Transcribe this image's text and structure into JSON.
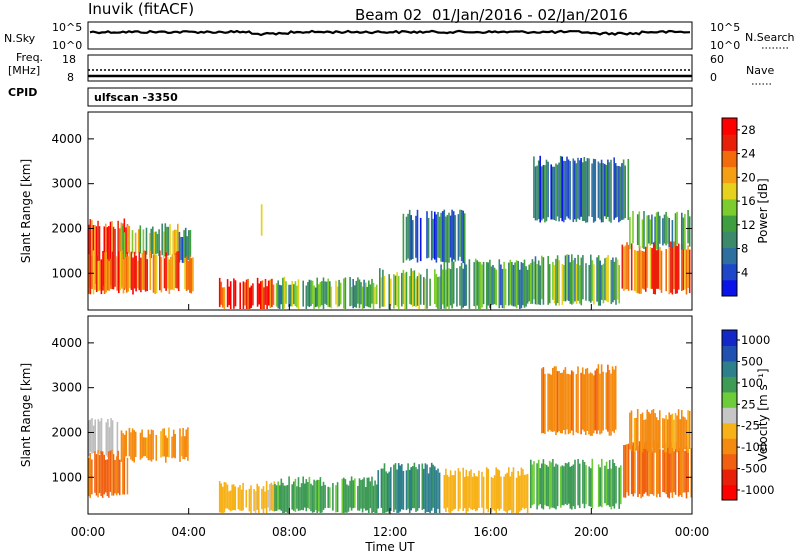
{
  "header": {
    "station": "Inuvik  (fitACF)",
    "beam": "Beam 02",
    "date_range": "01/Jan/2016 - 02/Jan/2016"
  },
  "strip": {
    "nsky_label": "N.Sky",
    "nsky_ticks": [
      "10^5",
      "10^0"
    ],
    "nsearch_label": "N.Search",
    "nsearch_ticks": [
      "10^5",
      "10^0"
    ],
    "freq_label_line1": "Freq.",
    "freq_label_line2": "[MHz]",
    "freq_ticks": [
      "18",
      "8"
    ],
    "nave_label": "Nave",
    "nave_ticks": [
      "60",
      "0"
    ],
    "cpid_label": "CPID",
    "cpid_value": "ulfscan -3350"
  },
  "colors": {
    "power_scale": [
      "#0a14e8",
      "#1e46c8",
      "#2f6fa0",
      "#3d8a6a",
      "#3f9e3f",
      "#7ccc2e",
      "#e6d21e",
      "#f5a014",
      "#f26c0c",
      "#e8200a",
      "#ff0000"
    ],
    "velocity_scale": [
      "#1428c8",
      "#2050b0",
      "#2e7f8c",
      "#3d9b55",
      "#6ccc3a",
      "#c6c6c6",
      "#f7b21a",
      "#f48a10",
      "#f06010",
      "#e8200a",
      "#ff0000"
    ],
    "ground_scatter": "#bdbdbd"
  },
  "chart_data": [
    {
      "type": "heatmap",
      "panel": "power",
      "xlabel": "Time UT",
      "ylabel": "Slant Range [km]",
      "x_tick_labels": [
        "00:00",
        "04:00",
        "08:00",
        "12:00",
        "16:00",
        "20:00",
        "00:00"
      ],
      "x_ticks_hours": [
        0,
        4,
        8,
        12,
        16,
        20,
        24
      ],
      "xlim_hours": [
        0,
        24
      ],
      "y_ticks": [
        1000,
        2000,
        3000,
        4000
      ],
      "ylim": [
        180,
        4600
      ],
      "colorbar": {
        "label": "Power [dB]",
        "ticks": [
          4,
          8,
          12,
          16,
          20,
          24,
          28
        ],
        "range": [
          0,
          30
        ]
      },
      "regions": [
        {
          "t0": 0.0,
          "t1": 1.6,
          "r0": 700,
          "r1": 2100,
          "value": 26
        },
        {
          "t0": 1.3,
          "t1": 3.6,
          "r0": 1400,
          "r1": 2000,
          "value": 14
        },
        {
          "t0": 3.6,
          "t1": 4.1,
          "r0": 1300,
          "r1": 1900,
          "value": 8
        },
        {
          "t0": 0.0,
          "t1": 4.2,
          "r0": 600,
          "r1": 1400,
          "value": 24
        },
        {
          "t0": 5.2,
          "t1": 7.4,
          "r0": 230,
          "r1": 800,
          "value": 28
        },
        {
          "t0": 6.8,
          "t1": 7.0,
          "r0": 1800,
          "r1": 2500,
          "value": 18
        },
        {
          "t0": 7.4,
          "t1": 11.5,
          "r0": 250,
          "r1": 800,
          "value": 12
        },
        {
          "t0": 11.5,
          "t1": 14.0,
          "r0": 250,
          "r1": 1000,
          "value": 14
        },
        {
          "t0": 14.0,
          "t1": 17.5,
          "r0": 250,
          "r1": 1200,
          "value": 10
        },
        {
          "t0": 17.5,
          "t1": 21.2,
          "r0": 350,
          "r1": 1300,
          "value": 12
        },
        {
          "t0": 17.5,
          "t1": 21.5,
          "r0": 2200,
          "r1": 3500,
          "value": 6
        },
        {
          "t0": 21.2,
          "t1": 24.0,
          "r0": 600,
          "r1": 1600,
          "value": 24
        },
        {
          "t0": 21.5,
          "t1": 24.0,
          "r0": 1600,
          "r1": 2300,
          "value": 10
        },
        {
          "t0": 12.5,
          "t1": 15.0,
          "r0": 1300,
          "r1": 2300,
          "value": 6
        }
      ]
    },
    {
      "type": "heatmap",
      "panel": "velocity",
      "xlabel": "Time UT",
      "ylabel": "Slant Range [km]",
      "x_tick_labels": [
        "00:00",
        "04:00",
        "08:00",
        "12:00",
        "16:00",
        "20:00",
        "00:00"
      ],
      "x_ticks_hours": [
        0,
        4,
        8,
        12,
        16,
        20,
        24
      ],
      "xlim_hours": [
        0,
        24
      ],
      "y_ticks": [
        1000,
        2000,
        3000,
        4000
      ],
      "ylim": [
        180,
        4600
      ],
      "colorbar": {
        "label": "Velocity [m s⁻¹]",
        "ticks": [
          1000,
          500,
          100,
          25,
          -25,
          -100,
          -500,
          -1000
        ]
      },
      "regions": [
        {
          "t0": 0.0,
          "t1": 1.2,
          "r0": 1500,
          "r1": 2200,
          "value": 0,
          "ground": true
        },
        {
          "t0": 0.0,
          "t1": 1.6,
          "r0": 600,
          "r1": 1500,
          "value": -300
        },
        {
          "t0": 1.3,
          "t1": 4.0,
          "r0": 1400,
          "r1": 2000,
          "value": -150
        },
        {
          "t0": 5.2,
          "t1": 7.5,
          "r0": 250,
          "r1": 800,
          "value": -40
        },
        {
          "t0": 7.4,
          "t1": 11.5,
          "r0": 250,
          "r1": 900,
          "value": 150
        },
        {
          "t0": 11.5,
          "t1": 14.0,
          "r0": 250,
          "r1": 1200,
          "value": 300
        },
        {
          "t0": 14.0,
          "t1": 17.5,
          "r0": 250,
          "r1": 1100,
          "value": -60
        },
        {
          "t0": 17.5,
          "t1": 21.2,
          "r0": 350,
          "r1": 1300,
          "value": 120
        },
        {
          "t0": 18.0,
          "t1": 21.0,
          "r0": 2000,
          "r1": 3400,
          "value": -200
        },
        {
          "t0": 21.2,
          "t1": 24.0,
          "r0": 600,
          "r1": 1700,
          "value": -300
        },
        {
          "t0": 21.5,
          "t1": 24.0,
          "r0": 1600,
          "r1": 2400,
          "value": -150
        }
      ]
    }
  ]
}
